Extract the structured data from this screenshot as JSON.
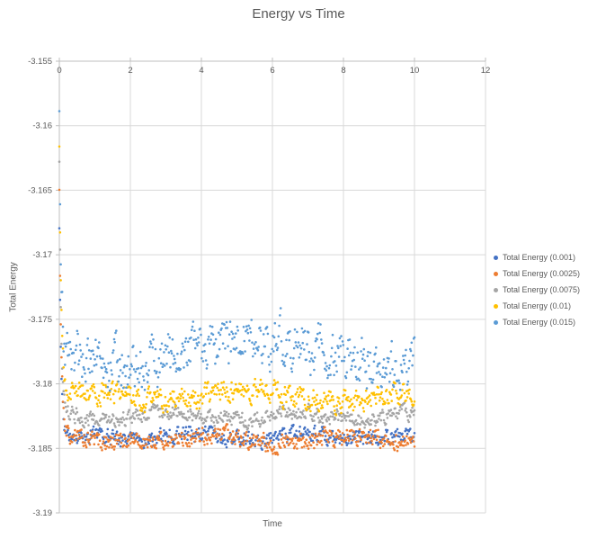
{
  "colors": {
    "background": "#FFFFFF",
    "grid": "#D9D9D9",
    "axis": "#BFBFBF",
    "text": "#595959"
  },
  "chart_data": {
    "type": "scatter",
    "title": "Energy vs Time",
    "xlabel": "Time",
    "ylabel": "Total Energy",
    "xlim": [
      0,
      12
    ],
    "ylim": [
      -3.19,
      -3.155
    ],
    "x_ticks": [
      0,
      2,
      4,
      6,
      8,
      10,
      12
    ],
    "x_tick_labels": [
      "0",
      "2",
      "4",
      "6",
      "8",
      "10",
      "12"
    ],
    "y_ticks": [
      -3.155,
      -3.16,
      -3.165,
      -3.17,
      -3.175,
      -3.18,
      -3.185,
      -3.19
    ],
    "y_tick_labels": [
      "-3.155",
      "-3.16",
      "-3.165",
      "-3.17",
      "-3.175",
      "-3.18",
      "-3.185",
      "-3.19"
    ],
    "grid": true,
    "legend_position": "right",
    "x_data_range": [
      0,
      10
    ],
    "points_per_series": 500,
    "marker": "dot",
    "series": [
      {
        "name": "Total Energy (0.001)",
        "color": "#4472C4",
        "start": -3.168,
        "mean": -3.1841,
        "noise": 0.0005,
        "tau": 0.05,
        "wave_amp": 0.0002,
        "wave_freq": 2.0,
        "wave_phase": 0.4,
        "seed": 11
      },
      {
        "name": "Total Energy (0.0025)",
        "color": "#ED7D31",
        "start": -3.1655,
        "mean": -3.1843,
        "noise": 0.0006,
        "tau": 0.05,
        "wave_amp": 0.0003,
        "wave_freq": 1.6,
        "wave_phase": 1.2,
        "seed": 22
      },
      {
        "name": "Total Energy (0.0075)",
        "color": "#A5A5A5",
        "start": -3.1635,
        "mean": -3.1825,
        "noise": 0.0005,
        "tau": 0.05,
        "wave_amp": 0.0003,
        "wave_freq": 1.8,
        "wave_phase": 2.1,
        "seed": 33
      },
      {
        "name": "Total Energy (0.01)",
        "color": "#FFC000",
        "start": -3.1615,
        "mean": -3.1809,
        "noise": 0.0007,
        "tau": 0.05,
        "wave_amp": 0.0004,
        "wave_freq": 1.3,
        "wave_phase": 0.9,
        "seed": 44
      },
      {
        "name": "Total Energy (0.015)",
        "color": "#5B9BD5",
        "start": -3.159,
        "mean": -3.1776,
        "noise": 0.0016,
        "tau": 0.05,
        "wave_amp": 0.001,
        "wave_freq": 0.9,
        "wave_phase": 2.8,
        "seed": 55
      }
    ]
  }
}
